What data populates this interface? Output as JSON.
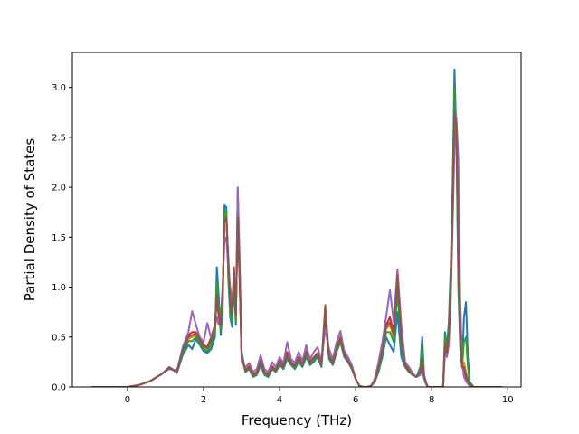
{
  "chart_data": {
    "type": "line",
    "title": "",
    "xlabel": "Frequency (THz)",
    "ylabel": "Partial Density of States",
    "xlim": [
      -1.45,
      10.35
    ],
    "ylim": [
      0.0,
      3.35
    ],
    "xticks": [
      0,
      2,
      4,
      6,
      8,
      10
    ],
    "yticks": [
      0.0,
      0.5,
      1.0,
      1.5,
      2.0,
      2.5,
      3.0
    ],
    "xtick_labels": [
      "0",
      "2",
      "4",
      "6",
      "8",
      "10"
    ],
    "ytick_labels": [
      "0.0",
      "0.5",
      "1.0",
      "1.5",
      "2.0",
      "2.5",
      "3.0"
    ],
    "grid": false,
    "legend": "none",
    "colors": [
      "#1f77b4",
      "#ff7f0e",
      "#2ca02c",
      "#d62728",
      "#9467bd",
      "#8c564b"
    ],
    "series": [
      {
        "x": [
          -0.95,
          0.0,
          0.3,
          0.6,
          0.9,
          1.1,
          1.3,
          1.45,
          1.6,
          1.7,
          1.8,
          1.9,
          2.0,
          2.1,
          2.2,
          2.3,
          2.35,
          2.4,
          2.45,
          2.5,
          2.55,
          2.6,
          2.65,
          2.7,
          2.75,
          2.8,
          2.85,
          2.9,
          2.95,
          3.0,
          3.1,
          3.2,
          3.3,
          3.4,
          3.5,
          3.6,
          3.7,
          3.8,
          3.9,
          4.0,
          4.1,
          4.2,
          4.3,
          4.4,
          4.5,
          4.6,
          4.7,
          4.8,
          4.9,
          5.0,
          5.1,
          5.2,
          5.3,
          5.4,
          5.5,
          5.6,
          5.7,
          5.8,
          5.9,
          6.0,
          6.1,
          6.2,
          6.3,
          6.4,
          6.5,
          6.6,
          6.7,
          6.8,
          6.9,
          7.0,
          7.1,
          7.2,
          7.3,
          7.4,
          7.5,
          7.6,
          7.7,
          7.75,
          7.8,
          7.85,
          7.9,
          8.0,
          8.1,
          8.2,
          8.3,
          8.35,
          8.4,
          8.45,
          8.5,
          8.55,
          8.6,
          8.65,
          8.7,
          8.75,
          8.8,
          8.85,
          8.9,
          8.95,
          9.0,
          9.1,
          9.85
        ],
        "y": [
          0.0,
          0.0,
          0.02,
          0.06,
          0.13,
          0.2,
          0.14,
          0.32,
          0.42,
          0.38,
          0.48,
          0.42,
          0.36,
          0.34,
          0.38,
          0.5,
          1.2,
          0.9,
          0.52,
          0.72,
          1.82,
          1.8,
          1.1,
          0.7,
          0.6,
          1.05,
          0.62,
          1.98,
          1.2,
          0.35,
          0.15,
          0.18,
          0.1,
          0.12,
          0.22,
          0.12,
          0.1,
          0.18,
          0.15,
          0.22,
          0.18,
          0.28,
          0.22,
          0.18,
          0.25,
          0.2,
          0.3,
          0.22,
          0.25,
          0.3,
          0.2,
          0.75,
          0.28,
          0.22,
          0.35,
          0.45,
          0.3,
          0.25,
          0.18,
          0.08,
          0.01,
          0.0,
          0.0,
          0.01,
          0.05,
          0.15,
          0.3,
          0.5,
          0.42,
          0.35,
          0.75,
          0.3,
          0.2,
          0.15,
          0.12,
          0.1,
          0.2,
          0.5,
          0.12,
          0.05,
          0.0,
          0.0,
          0.0,
          0.0,
          0.0,
          0.55,
          0.4,
          0.65,
          1.2,
          2.0,
          3.18,
          2.5,
          1.0,
          0.4,
          0.2,
          0.7,
          0.85,
          0.3,
          0.05,
          0.0,
          0.0
        ]
      },
      {
        "x": [
          -0.95,
          0.0,
          0.3,
          0.6,
          0.9,
          1.1,
          1.3,
          1.45,
          1.6,
          1.7,
          1.8,
          1.9,
          2.0,
          2.1,
          2.2,
          2.3,
          2.35,
          2.4,
          2.45,
          2.5,
          2.55,
          2.6,
          2.65,
          2.7,
          2.75,
          2.8,
          2.85,
          2.9,
          2.95,
          3.0,
          3.1,
          3.2,
          3.3,
          3.4,
          3.5,
          3.6,
          3.7,
          3.8,
          3.9,
          4.0,
          4.1,
          4.2,
          4.3,
          4.4,
          4.5,
          4.6,
          4.7,
          4.8,
          4.9,
          5.0,
          5.1,
          5.2,
          5.3,
          5.4,
          5.5,
          5.6,
          5.7,
          5.8,
          5.9,
          6.0,
          6.1,
          6.2,
          6.3,
          6.4,
          6.5,
          6.6,
          6.7,
          6.8,
          6.9,
          7.0,
          7.1,
          7.2,
          7.3,
          7.4,
          7.5,
          7.6,
          7.7,
          7.75,
          7.8,
          7.85,
          7.9,
          8.0,
          8.1,
          8.2,
          8.3,
          8.35,
          8.4,
          8.45,
          8.5,
          8.55,
          8.6,
          8.65,
          8.7,
          8.75,
          8.8,
          8.85,
          8.9,
          8.95,
          9.0,
          9.1,
          9.85
        ],
        "y": [
          0.0,
          0.0,
          0.02,
          0.06,
          0.13,
          0.19,
          0.15,
          0.36,
          0.48,
          0.5,
          0.52,
          0.46,
          0.4,
          0.38,
          0.45,
          0.58,
          0.95,
          0.75,
          0.6,
          0.85,
          1.7,
          1.72,
          1.25,
          0.85,
          0.7,
          1.15,
          0.7,
          1.75,
          1.1,
          0.3,
          0.16,
          0.2,
          0.12,
          0.14,
          0.25,
          0.14,
          0.12,
          0.2,
          0.16,
          0.25,
          0.2,
          0.32,
          0.24,
          0.2,
          0.28,
          0.22,
          0.34,
          0.24,
          0.28,
          0.32,
          0.22,
          0.68,
          0.3,
          0.24,
          0.38,
          0.48,
          0.32,
          0.26,
          0.19,
          0.08,
          0.01,
          0.0,
          0.0,
          0.01,
          0.06,
          0.18,
          0.35,
          0.58,
          0.62,
          0.5,
          1.1,
          0.45,
          0.22,
          0.16,
          0.12,
          0.1,
          0.16,
          0.3,
          0.1,
          0.04,
          0.0,
          0.0,
          0.0,
          0.0,
          0.0,
          0.45,
          0.35,
          0.55,
          1.0,
          1.85,
          2.8,
          2.6,
          1.3,
          0.55,
          0.2,
          0.25,
          0.15,
          0.08,
          0.02,
          0.0,
          0.0
        ]
      },
      {
        "x": [
          -0.95,
          0.0,
          0.3,
          0.6,
          0.9,
          1.1,
          1.3,
          1.45,
          1.6,
          1.7,
          1.8,
          1.9,
          2.0,
          2.1,
          2.2,
          2.3,
          2.35,
          2.4,
          2.45,
          2.5,
          2.55,
          2.6,
          2.65,
          2.7,
          2.75,
          2.8,
          2.85,
          2.9,
          2.95,
          3.0,
          3.1,
          3.2,
          3.3,
          3.4,
          3.5,
          3.6,
          3.7,
          3.8,
          3.9,
          4.0,
          4.1,
          4.2,
          4.3,
          4.4,
          4.5,
          4.6,
          4.7,
          4.8,
          4.9,
          5.0,
          5.1,
          5.2,
          5.3,
          5.4,
          5.5,
          5.6,
          5.7,
          5.8,
          5.9,
          6.0,
          6.1,
          6.2,
          6.3,
          6.4,
          6.5,
          6.6,
          6.7,
          6.8,
          6.9,
          7.0,
          7.1,
          7.2,
          7.3,
          7.4,
          7.5,
          7.6,
          7.7,
          7.75,
          7.8,
          7.85,
          7.9,
          8.0,
          8.1,
          8.2,
          8.3,
          8.35,
          8.4,
          8.45,
          8.5,
          8.55,
          8.6,
          8.65,
          8.7,
          8.75,
          8.8,
          8.85,
          8.9,
          8.95,
          9.0,
          9.1,
          9.85
        ],
        "y": [
          0.0,
          0.0,
          0.02,
          0.06,
          0.13,
          0.19,
          0.15,
          0.34,
          0.46,
          0.46,
          0.5,
          0.44,
          0.38,
          0.36,
          0.42,
          0.55,
          1.05,
          0.8,
          0.56,
          0.78,
          1.75,
          1.76,
          1.15,
          0.78,
          0.65,
          1.1,
          0.66,
          1.85,
          1.15,
          0.32,
          0.15,
          0.19,
          0.11,
          0.13,
          0.24,
          0.13,
          0.11,
          0.19,
          0.15,
          0.24,
          0.19,
          0.3,
          0.23,
          0.19,
          0.27,
          0.21,
          0.32,
          0.23,
          0.27,
          0.31,
          0.21,
          0.72,
          0.29,
          0.23,
          0.36,
          0.46,
          0.31,
          0.25,
          0.18,
          0.08,
          0.01,
          0.0,
          0.0,
          0.01,
          0.05,
          0.16,
          0.32,
          0.55,
          0.55,
          0.45,
          0.95,
          0.4,
          0.21,
          0.15,
          0.12,
          0.1,
          0.18,
          0.4,
          0.11,
          0.04,
          0.0,
          0.0,
          0.0,
          0.0,
          0.0,
          0.5,
          0.38,
          0.6,
          1.1,
          1.9,
          3.0,
          2.55,
          1.15,
          0.45,
          0.2,
          0.45,
          0.5,
          0.2,
          0.04,
          0.0,
          0.0
        ]
      },
      {
        "x": [
          -0.95,
          0.0,
          0.3,
          0.6,
          0.9,
          1.1,
          1.3,
          1.45,
          1.6,
          1.7,
          1.8,
          1.9,
          2.0,
          2.1,
          2.2,
          2.3,
          2.35,
          2.4,
          2.45,
          2.5,
          2.55,
          2.6,
          2.65,
          2.7,
          2.75,
          2.8,
          2.85,
          2.9,
          2.95,
          3.0,
          3.1,
          3.2,
          3.3,
          3.4,
          3.5,
          3.6,
          3.7,
          3.8,
          3.9,
          4.0,
          4.1,
          4.2,
          4.3,
          4.4,
          4.5,
          4.6,
          4.7,
          4.8,
          4.9,
          5.0,
          5.1,
          5.2,
          5.3,
          5.4,
          5.5,
          5.6,
          5.7,
          5.8,
          5.9,
          6.0,
          6.1,
          6.2,
          6.3,
          6.4,
          6.5,
          6.6,
          6.7,
          6.8,
          6.9,
          7.0,
          7.1,
          7.2,
          7.3,
          7.4,
          7.5,
          7.6,
          7.7,
          7.75,
          7.8,
          7.85,
          7.9,
          8.0,
          8.1,
          8.2,
          8.3,
          8.35,
          8.4,
          8.45,
          8.5,
          8.55,
          8.6,
          8.65,
          8.7,
          8.75,
          8.8,
          8.85,
          8.9,
          8.95,
          9.0,
          9.1,
          9.85
        ],
        "y": [
          0.0,
          0.0,
          0.02,
          0.06,
          0.13,
          0.19,
          0.16,
          0.38,
          0.52,
          0.55,
          0.55,
          0.48,
          0.42,
          0.4,
          0.5,
          0.62,
          0.88,
          0.7,
          0.64,
          0.9,
          1.65,
          1.68,
          1.3,
          0.9,
          0.75,
          1.2,
          0.75,
          1.65,
          1.05,
          0.28,
          0.17,
          0.21,
          0.13,
          0.15,
          0.27,
          0.15,
          0.13,
          0.21,
          0.17,
          0.27,
          0.21,
          0.35,
          0.25,
          0.21,
          0.3,
          0.23,
          0.36,
          0.25,
          0.3,
          0.34,
          0.23,
          0.65,
          0.32,
          0.25,
          0.4,
          0.5,
          0.33,
          0.27,
          0.2,
          0.08,
          0.01,
          0.0,
          0.0,
          0.01,
          0.07,
          0.2,
          0.38,
          0.62,
          0.7,
          0.55,
          1.15,
          0.5,
          0.23,
          0.17,
          0.13,
          0.1,
          0.15,
          0.25,
          0.09,
          0.03,
          0.0,
          0.0,
          0.0,
          0.0,
          0.0,
          0.42,
          0.33,
          0.5,
          0.95,
          1.8,
          2.7,
          2.65,
          1.4,
          0.6,
          0.2,
          0.15,
          0.1,
          0.05,
          0.01,
          0.0,
          0.0
        ]
      },
      {
        "x": [
          -0.95,
          0.0,
          0.3,
          0.6,
          0.9,
          1.1,
          1.3,
          1.45,
          1.6,
          1.7,
          1.8,
          1.9,
          2.0,
          2.1,
          2.2,
          2.3,
          2.35,
          2.4,
          2.45,
          2.5,
          2.55,
          2.6,
          2.65,
          2.7,
          2.75,
          2.8,
          2.85,
          2.9,
          2.95,
          3.0,
          3.1,
          3.2,
          3.3,
          3.4,
          3.5,
          3.6,
          3.7,
          3.8,
          3.9,
          4.0,
          4.1,
          4.2,
          4.3,
          4.4,
          4.5,
          4.6,
          4.7,
          4.8,
          4.9,
          5.0,
          5.1,
          5.2,
          5.3,
          5.4,
          5.5,
          5.6,
          5.7,
          5.8,
          5.9,
          6.0,
          6.1,
          6.2,
          6.3,
          6.4,
          6.5,
          6.6,
          6.7,
          6.8,
          6.9,
          7.0,
          7.1,
          7.2,
          7.3,
          7.4,
          7.5,
          7.6,
          7.7,
          7.75,
          7.8,
          7.85,
          7.9,
          8.0,
          8.1,
          8.2,
          8.3,
          8.35,
          8.4,
          8.45,
          8.5,
          8.55,
          8.6,
          8.65,
          8.7,
          8.75,
          8.8,
          8.85,
          8.9,
          8.95,
          9.0,
          9.1,
          9.85
        ],
        "y": [
          0.0,
          0.0,
          0.02,
          0.06,
          0.13,
          0.18,
          0.16,
          0.4,
          0.55,
          0.76,
          0.62,
          0.5,
          0.45,
          0.64,
          0.48,
          0.6,
          0.7,
          0.62,
          0.68,
          1.0,
          1.45,
          1.5,
          1.2,
          1.0,
          0.85,
          1.1,
          0.8,
          2.0,
          1.3,
          0.25,
          0.2,
          0.24,
          0.15,
          0.18,
          0.32,
          0.18,
          0.15,
          0.25,
          0.2,
          0.3,
          0.24,
          0.45,
          0.28,
          0.24,
          0.35,
          0.26,
          0.42,
          0.28,
          0.35,
          0.4,
          0.26,
          0.58,
          0.38,
          0.28,
          0.45,
          0.56,
          0.36,
          0.3,
          0.22,
          0.08,
          0.01,
          0.0,
          0.0,
          0.01,
          0.08,
          0.25,
          0.45,
          0.7,
          0.97,
          0.65,
          1.18,
          0.62,
          0.25,
          0.2,
          0.14,
          0.1,
          0.12,
          0.18,
          0.08,
          0.03,
          0.0,
          0.0,
          0.0,
          0.0,
          0.0,
          0.35,
          0.3,
          0.42,
          0.85,
          1.6,
          2.4,
          2.7,
          2.3,
          0.9,
          0.25,
          0.1,
          0.06,
          0.03,
          0.01,
          0.0,
          0.0
        ]
      },
      {
        "x": [
          -0.95,
          0.0,
          0.3,
          0.6,
          0.9,
          1.1,
          1.3,
          1.45,
          1.6,
          1.7,
          1.8,
          1.9,
          2.0,
          2.1,
          2.2,
          2.3,
          2.35,
          2.4,
          2.45,
          2.5,
          2.55,
          2.6,
          2.65,
          2.7,
          2.75,
          2.8,
          2.85,
          2.9,
          2.95,
          3.0,
          3.1,
          3.2,
          3.3,
          3.4,
          3.5,
          3.6,
          3.7,
          3.8,
          3.9,
          4.0,
          4.1,
          4.2,
          4.3,
          4.4,
          4.5,
          4.6,
          4.7,
          4.8,
          4.9,
          5.0,
          5.1,
          5.2,
          5.3,
          5.4,
          5.5,
          5.6,
          5.7,
          5.8,
          5.9,
          6.0,
          6.1,
          6.2,
          6.3,
          6.4,
          6.5,
          6.6,
          6.7,
          6.8,
          6.9,
          7.0,
          7.1,
          7.2,
          7.3,
          7.4,
          7.5,
          7.6,
          7.7,
          7.75,
          7.8,
          7.85,
          7.9,
          8.0,
          8.1,
          8.2,
          8.3,
          8.35,
          8.4,
          8.45,
          8.5,
          8.55,
          8.6,
          8.65,
          8.7,
          8.75,
          8.8,
          8.85,
          8.9,
          8.95,
          9.0,
          9.1,
          9.85
        ],
        "y": [
          0.0,
          0.0,
          0.02,
          0.06,
          0.13,
          0.19,
          0.15,
          0.37,
          0.5,
          0.52,
          0.54,
          0.47,
          0.41,
          0.39,
          0.47,
          0.6,
          0.92,
          0.72,
          0.62,
          0.88,
          1.68,
          1.7,
          1.28,
          0.88,
          0.72,
          1.18,
          0.72,
          1.7,
          1.08,
          0.3,
          0.16,
          0.2,
          0.12,
          0.14,
          0.26,
          0.14,
          0.12,
          0.2,
          0.16,
          0.26,
          0.2,
          0.33,
          0.24,
          0.2,
          0.29,
          0.22,
          0.35,
          0.24,
          0.29,
          0.33,
          0.22,
          0.82,
          0.31,
          0.24,
          0.39,
          0.49,
          0.32,
          0.26,
          0.19,
          0.08,
          0.01,
          0.0,
          0.0,
          0.01,
          0.06,
          0.19,
          0.36,
          0.6,
          0.65,
          0.52,
          1.12,
          0.47,
          0.22,
          0.16,
          0.12,
          0.1,
          0.15,
          0.28,
          0.1,
          0.04,
          0.0,
          0.0,
          0.0,
          0.0,
          0.0,
          0.43,
          0.34,
          0.52,
          0.98,
          1.82,
          2.75,
          2.62,
          1.52,
          0.58,
          0.2,
          0.2,
          0.12,
          0.06,
          0.02,
          0.0,
          0.0
        ]
      }
    ]
  }
}
